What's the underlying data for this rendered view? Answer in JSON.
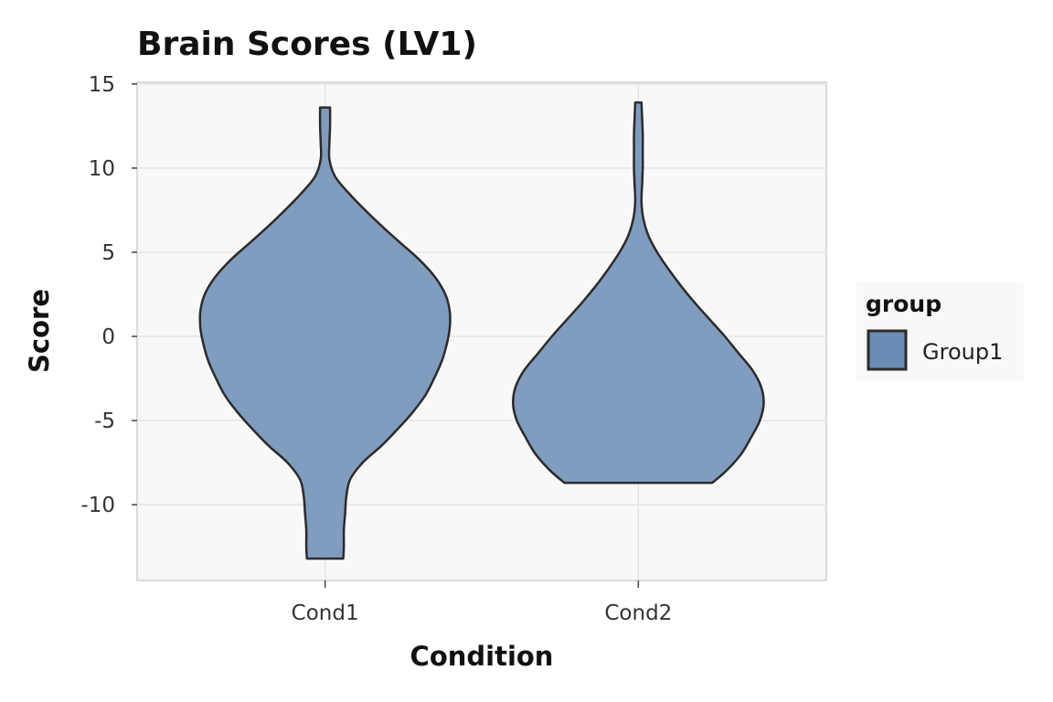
{
  "chart_data": {
    "type": "violin",
    "title": "Brain Scores (LV1)",
    "xlabel": "Condition",
    "ylabel": "Score",
    "categories": [
      "Cond1",
      "Cond2"
    ],
    "ylim": [
      -14.5,
      15.1
    ],
    "yticks": [
      15,
      10,
      5,
      0,
      -5,
      -10
    ],
    "ytick_labels": [
      "15",
      "10",
      "5",
      "0",
      "-5",
      "-10"
    ],
    "grid": true,
    "legend": {
      "title": "group",
      "position": "right",
      "entries": [
        "Group1"
      ]
    },
    "series": [
      {
        "name": "Group1",
        "color": "#6b8cb5",
        "violins": [
          {
            "category": "Cond1",
            "min": -13.2,
            "max": 13.6,
            "half_width_profile": [
              [
                -13.2,
                0.145
              ],
              [
                -12.5,
                0.15
              ],
              [
                -11.5,
                0.15
              ],
              [
                -10.5,
                0.16
              ],
              [
                -9.5,
                0.17
              ],
              [
                -8.5,
                0.2
              ],
              [
                -7.5,
                0.3
              ],
              [
                -6.5,
                0.45
              ],
              [
                -5.5,
                0.58
              ],
              [
                -4.5,
                0.7
              ],
              [
                -3.5,
                0.8
              ],
              [
                -2.5,
                0.87
              ],
              [
                -1.5,
                0.93
              ],
              [
                -0.5,
                0.97
              ],
              [
                0.5,
                0.995
              ],
              [
                1.5,
                0.995
              ],
              [
                2.5,
                0.96
              ],
              [
                3.5,
                0.88
              ],
              [
                4.5,
                0.76
              ],
              [
                5.5,
                0.61
              ],
              [
                6.5,
                0.46
              ],
              [
                7.5,
                0.32
              ],
              [
                8.5,
                0.19
              ],
              [
                9.5,
                0.08
              ],
              [
                10.5,
                0.035
              ],
              [
                11.5,
                0.035
              ],
              [
                12.5,
                0.04
              ],
              [
                13.6,
                0.04
              ]
            ]
          },
          {
            "category": "Cond2",
            "min": -8.7,
            "max": 13.9,
            "half_width_profile": [
              [
                -8.7,
                0.59
              ],
              [
                -8.0,
                0.7
              ],
              [
                -7.0,
                0.82
              ],
              [
                -6.0,
                0.9
              ],
              [
                -5.0,
                0.97
              ],
              [
                -4.0,
                1.0
              ],
              [
                -3.0,
                0.98
              ],
              [
                -2.0,
                0.91
              ],
              [
                -1.0,
                0.8
              ],
              [
                0.0,
                0.69
              ],
              [
                1.0,
                0.57
              ],
              [
                2.0,
                0.45
              ],
              [
                3.0,
                0.34
              ],
              [
                4.0,
                0.24
              ],
              [
                5.0,
                0.15
              ],
              [
                6.0,
                0.08
              ],
              [
                7.0,
                0.04
              ],
              [
                8.0,
                0.025
              ],
              [
                9.0,
                0.03
              ],
              [
                10.0,
                0.035
              ],
              [
                11.0,
                0.035
              ],
              [
                12.0,
                0.035
              ],
              [
                13.0,
                0.03
              ],
              [
                13.9,
                0.025
              ]
            ]
          }
        ]
      }
    ]
  }
}
